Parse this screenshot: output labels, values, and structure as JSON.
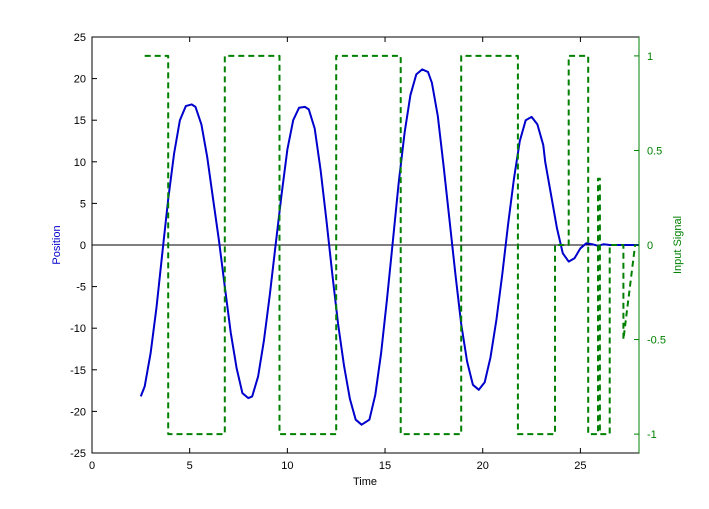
{
  "chart_data": {
    "type": "line",
    "title": "",
    "xlabel": "Time",
    "ylabel_left": "Position",
    "ylabel_right": "Input Signal",
    "xlim": [
      0,
      28
    ],
    "ylim_left": [
      -25,
      25
    ],
    "ylim_right": [
      -1.1,
      1.1
    ],
    "x_ticks": [
      0,
      5,
      10,
      15,
      20,
      25
    ],
    "y_left_ticks": [
      -25,
      -20,
      -15,
      -10,
      -5,
      0,
      5,
      10,
      15,
      20,
      25
    ],
    "y_right_ticks": [
      -1,
      -0.5,
      0,
      0.5,
      1
    ],
    "zero_line": true,
    "grid": false,
    "legend": "none",
    "colors": {
      "position": "#0000cc",
      "input_signal": "#008000",
      "left_axis": "#000000",
      "right_axis": "#008000",
      "ylabel_left": "#0000cc",
      "ylabel_right": "#008000"
    },
    "series": [
      {
        "axis": "left",
        "style": "solid",
        "x": [
          2.5,
          2.7,
          3.0,
          3.3,
          3.6,
          3.9,
          4.2,
          4.5,
          4.8,
          5.1,
          5.3,
          5.6,
          5.9,
          6.2,
          6.5,
          6.8,
          7.1,
          7.4,
          7.7,
          8.0,
          8.2,
          8.5,
          8.8,
          9.1,
          9.4,
          9.7,
          10.0,
          10.3,
          10.6,
          10.9,
          11.1,
          11.4,
          11.7,
          12.0,
          12.3,
          12.6,
          12.9,
          13.2,
          13.5,
          13.8,
          14.2,
          14.5,
          14.8,
          15.1,
          15.4,
          15.7,
          16.0,
          16.3,
          16.6,
          16.9,
          17.2,
          17.4,
          17.7,
          18.0,
          18.3,
          18.6,
          18.9,
          19.2,
          19.5,
          19.8,
          20.1,
          20.4,
          20.7,
          21.0,
          21.3,
          21.6,
          21.9,
          22.2,
          22.5,
          22.8,
          23.1,
          23.2,
          23.5,
          23.8,
          24.1,
          24.4,
          24.7,
          25.0,
          25.3,
          25.6,
          25.9,
          26.2,
          26.5,
          26.8,
          27.1,
          27.4,
          27.7,
          28.0
        ],
        "y": [
          -18.2,
          -17.0,
          -13.0,
          -7.5,
          -1.0,
          5.5,
          11.0,
          15.0,
          16.7,
          16.9,
          16.6,
          14.5,
          10.5,
          5.5,
          0.5,
          -5.0,
          -10.5,
          -14.8,
          -17.8,
          -18.4,
          -18.2,
          -15.8,
          -11.5,
          -6.0,
          0.0,
          6.0,
          11.5,
          15.0,
          16.5,
          16.6,
          16.3,
          14.0,
          9.0,
          3.0,
          -3.5,
          -9.5,
          -14.5,
          -18.5,
          -21.0,
          -21.6,
          -21.0,
          -18.0,
          -13.0,
          -6.5,
          0.5,
          7.5,
          13.5,
          18.0,
          20.5,
          21.1,
          20.8,
          19.5,
          15.5,
          9.5,
          3.0,
          -3.5,
          -9.5,
          -14.0,
          -16.8,
          -17.4,
          -16.5,
          -13.5,
          -9.0,
          -3.5,
          2.5,
          8.0,
          12.5,
          15.0,
          15.4,
          14.5,
          12.0,
          10.0,
          6.0,
          2.0,
          -1.0,
          -2.0,
          -1.6,
          -0.4,
          0.2,
          0.1,
          -0.1,
          0.1,
          0.0,
          0.0,
          0.0,
          0.0,
          0.0,
          0.0
        ]
      },
      {
        "axis": "right",
        "style": "dashed",
        "x": [
          2.7,
          3.9,
          3.9,
          6.8,
          6.8,
          9.6,
          9.6,
          12.5,
          12.5,
          15.8,
          15.8,
          18.9,
          18.9,
          21.8,
          21.8,
          23.7,
          23.7,
          24.4,
          24.4,
          25.4,
          25.4,
          25.9,
          25.9,
          26.0,
          26.0,
          26.5,
          26.5,
          27.2,
          27.2,
          27.8
        ],
        "y": [
          1.0,
          1.0,
          -1.0,
          -1.0,
          1.0,
          1.0,
          -1.0,
          -1.0,
          1.0,
          1.0,
          -1.0,
          -1.0,
          1.0,
          1.0,
          -1.0,
          -1.0,
          0.0,
          0.0,
          1.0,
          1.0,
          -1.0,
          -1.0,
          0.35,
          0.35,
          -1.0,
          -1.0,
          0.0,
          0.0,
          -0.5,
          0.0
        ]
      }
    ]
  }
}
